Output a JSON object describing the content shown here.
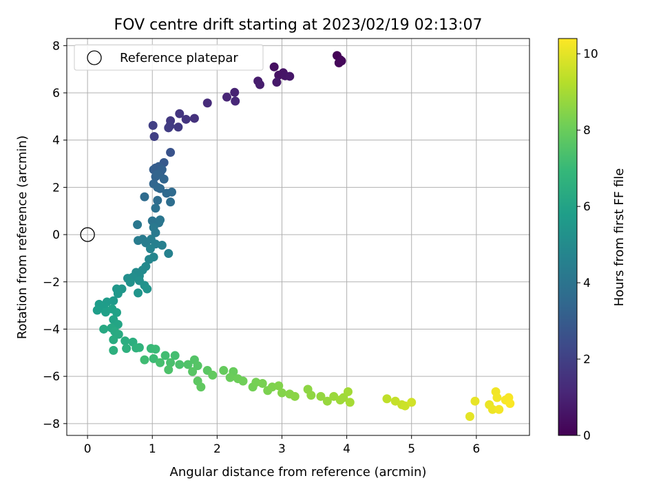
{
  "chart_data": {
    "type": "scatter",
    "title": "FOV centre drift starting at 2023/02/19 02:13:07",
    "xlabel": "Angular distance from reference (arcmin)",
    "ylabel": "Rotation from reference (arcmin)",
    "xlim": [
      -0.32,
      6.82
    ],
    "ylim": [
      -8.5,
      8.3
    ],
    "xticks": [
      0,
      1,
      2,
      3,
      4,
      5,
      6
    ],
    "yticks": [
      -8,
      -6,
      -4,
      -2,
      0,
      2,
      4,
      6,
      8
    ],
    "grid": true,
    "legend": {
      "position": "top-left",
      "entries": [
        "Reference platepar"
      ]
    },
    "reference_point": {
      "x": 0,
      "y": 0,
      "marker": "open-circle"
    },
    "colorbar": {
      "label": "Hours from first FF file",
      "colormap": "viridis",
      "min": 0,
      "max": 10.4,
      "ticks": [
        0,
        2,
        4,
        6,
        8,
        10
      ]
    },
    "points": [
      {
        "x": 3.85,
        "y": 7.58,
        "c": 0.05
      },
      {
        "x": 3.9,
        "y": 7.4,
        "c": 0.1
      },
      {
        "x": 3.88,
        "y": 7.27,
        "c": 0.15
      },
      {
        "x": 3.92,
        "y": 7.35,
        "c": 0.2
      },
      {
        "x": 2.88,
        "y": 7.1,
        "c": 0.4
      },
      {
        "x": 2.95,
        "y": 6.75,
        "c": 0.5
      },
      {
        "x": 3.02,
        "y": 6.85,
        "c": 0.55
      },
      {
        "x": 3.05,
        "y": 6.72,
        "c": 0.6
      },
      {
        "x": 3.12,
        "y": 6.7,
        "c": 0.65
      },
      {
        "x": 2.92,
        "y": 6.45,
        "c": 0.7
      },
      {
        "x": 2.63,
        "y": 6.5,
        "c": 0.8
      },
      {
        "x": 2.66,
        "y": 6.35,
        "c": 0.85
      },
      {
        "x": 2.27,
        "y": 6.02,
        "c": 1.0
      },
      {
        "x": 2.15,
        "y": 5.82,
        "c": 1.1
      },
      {
        "x": 2.28,
        "y": 5.65,
        "c": 1.15
      },
      {
        "x": 1.85,
        "y": 5.57,
        "c": 1.3
      },
      {
        "x": 1.65,
        "y": 4.92,
        "c": 1.5
      },
      {
        "x": 1.52,
        "y": 4.88,
        "c": 1.6
      },
      {
        "x": 1.42,
        "y": 5.12,
        "c": 1.65
      },
      {
        "x": 1.28,
        "y": 4.82,
        "c": 1.75
      },
      {
        "x": 1.4,
        "y": 4.55,
        "c": 1.8
      },
      {
        "x": 1.27,
        "y": 4.6,
        "c": 1.85
      },
      {
        "x": 1.25,
        "y": 4.52,
        "c": 1.9
      },
      {
        "x": 1.01,
        "y": 4.62,
        "c": 1.95
      },
      {
        "x": 1.03,
        "y": 4.15,
        "c": 2.0
      },
      {
        "x": 1.28,
        "y": 3.48,
        "c": 2.7
      },
      {
        "x": 1.18,
        "y": 3.05,
        "c": 2.9
      },
      {
        "x": 1.05,
        "y": 2.82,
        "c": 3.0
      },
      {
        "x": 1.1,
        "y": 2.88,
        "c": 3.05
      },
      {
        "x": 1.02,
        "y": 2.75,
        "c": 3.1
      },
      {
        "x": 1.12,
        "y": 2.6,
        "c": 3.15
      },
      {
        "x": 1.15,
        "y": 2.75,
        "c": 3.2
      },
      {
        "x": 1.05,
        "y": 2.45,
        "c": 3.25
      },
      {
        "x": 1.08,
        "y": 2.55,
        "c": 3.3
      },
      {
        "x": 1.18,
        "y": 2.35,
        "c": 3.35
      },
      {
        "x": 1.02,
        "y": 2.15,
        "c": 3.4
      },
      {
        "x": 1.08,
        "y": 2.0,
        "c": 3.45
      },
      {
        "x": 1.12,
        "y": 1.95,
        "c": 3.5
      },
      {
        "x": 1.22,
        "y": 1.75,
        "c": 3.55
      },
      {
        "x": 1.3,
        "y": 1.8,
        "c": 3.6
      },
      {
        "x": 0.88,
        "y": 1.6,
        "c": 3.65
      },
      {
        "x": 1.08,
        "y": 1.45,
        "c": 3.7
      },
      {
        "x": 1.28,
        "y": 1.38,
        "c": 3.75
      },
      {
        "x": 1.05,
        "y": 1.12,
        "c": 3.85
      },
      {
        "x": 1.0,
        "y": 0.58,
        "c": 4.0
      },
      {
        "x": 1.1,
        "y": 0.5,
        "c": 4.05
      },
      {
        "x": 1.12,
        "y": 0.62,
        "c": 4.1
      },
      {
        "x": 0.77,
        "y": 0.42,
        "c": 4.15
      },
      {
        "x": 1.02,
        "y": 0.3,
        "c": 4.2
      },
      {
        "x": 1.05,
        "y": 0.08,
        "c": 4.25
      },
      {
        "x": 0.85,
        "y": -0.2,
        "c": 4.3
      },
      {
        "x": 0.78,
        "y": -0.25,
        "c": 4.35
      },
      {
        "x": 0.9,
        "y": -0.35,
        "c": 4.4
      },
      {
        "x": 0.98,
        "y": -0.2,
        "c": 4.45
      },
      {
        "x": 1.05,
        "y": -0.4,
        "c": 4.5
      },
      {
        "x": 1.15,
        "y": -0.45,
        "c": 4.55
      },
      {
        "x": 1.25,
        "y": -0.8,
        "c": 4.6
      },
      {
        "x": 0.97,
        "y": -0.6,
        "c": 4.65
      },
      {
        "x": 1.02,
        "y": -0.95,
        "c": 4.75
      },
      {
        "x": 0.95,
        "y": -1.05,
        "c": 4.8
      },
      {
        "x": 0.9,
        "y": -1.35,
        "c": 4.9
      },
      {
        "x": 0.85,
        "y": -1.5,
        "c": 4.95
      },
      {
        "x": 0.75,
        "y": -1.6,
        "c": 5.0
      },
      {
        "x": 0.8,
        "y": -1.75,
        "c": 5.05
      },
      {
        "x": 0.7,
        "y": -1.8,
        "c": 5.1
      },
      {
        "x": 0.62,
        "y": -1.85,
        "c": 5.15
      },
      {
        "x": 0.8,
        "y": -1.95,
        "c": 5.2
      },
      {
        "x": 0.66,
        "y": -2.02,
        "c": 5.25
      },
      {
        "x": 0.88,
        "y": -2.15,
        "c": 5.3
      },
      {
        "x": 0.92,
        "y": -2.3,
        "c": 5.35
      },
      {
        "x": 0.78,
        "y": -2.47,
        "c": 5.4
      },
      {
        "x": 0.53,
        "y": -2.3,
        "c": 5.45
      },
      {
        "x": 0.45,
        "y": -2.3,
        "c": 5.5
      },
      {
        "x": 0.47,
        "y": -2.5,
        "c": 5.55
      },
      {
        "x": 0.4,
        "y": -2.8,
        "c": 5.6
      },
      {
        "x": 0.3,
        "y": -2.85,
        "c": 5.65
      },
      {
        "x": 0.18,
        "y": -2.95,
        "c": 5.7
      },
      {
        "x": 0.25,
        "y": -3.05,
        "c": 5.75
      },
      {
        "x": 0.15,
        "y": -3.2,
        "c": 5.8
      },
      {
        "x": 0.28,
        "y": -3.28,
        "c": 5.85
      },
      {
        "x": 0.38,
        "y": -3.15,
        "c": 5.9
      },
      {
        "x": 0.45,
        "y": -3.3,
        "c": 5.95
      },
      {
        "x": 0.4,
        "y": -3.6,
        "c": 6.0
      },
      {
        "x": 0.47,
        "y": -3.8,
        "c": 6.1
      },
      {
        "x": 0.37,
        "y": -3.95,
        "c": 6.2
      },
      {
        "x": 0.25,
        "y": -4.0,
        "c": 6.25
      },
      {
        "x": 0.42,
        "y": -4.1,
        "c": 6.3
      },
      {
        "x": 0.48,
        "y": -4.22,
        "c": 6.35
      },
      {
        "x": 0.4,
        "y": -4.45,
        "c": 6.4
      },
      {
        "x": 0.58,
        "y": -4.5,
        "c": 6.45
      },
      {
        "x": 0.7,
        "y": -4.55,
        "c": 6.5
      },
      {
        "x": 0.4,
        "y": -4.9,
        "c": 6.55
      },
      {
        "x": 0.6,
        "y": -4.82,
        "c": 6.6
      },
      {
        "x": 0.75,
        "y": -4.8,
        "c": 6.65
      },
      {
        "x": 0.8,
        "y": -4.78,
        "c": 6.7
      },
      {
        "x": 0.98,
        "y": -4.82,
        "c": 7.0
      },
      {
        "x": 1.05,
        "y": -4.85,
        "c": 7.05
      },
      {
        "x": 1.02,
        "y": -5.25,
        "c": 7.1
      },
      {
        "x": 0.88,
        "y": -5.3,
        "c": 7.15
      },
      {
        "x": 1.2,
        "y": -5.12,
        "c": 7.2
      },
      {
        "x": 1.35,
        "y": -5.12,
        "c": 7.25
      },
      {
        "x": 1.12,
        "y": -5.42,
        "c": 7.3
      },
      {
        "x": 1.28,
        "y": -5.42,
        "c": 7.35
      },
      {
        "x": 1.42,
        "y": -5.5,
        "c": 7.4
      },
      {
        "x": 1.25,
        "y": -5.72,
        "c": 7.45
      },
      {
        "x": 1.55,
        "y": -5.5,
        "c": 7.5
      },
      {
        "x": 1.65,
        "y": -5.3,
        "c": 7.55
      },
      {
        "x": 1.7,
        "y": -5.55,
        "c": 7.6
      },
      {
        "x": 1.62,
        "y": -5.8,
        "c": 7.65
      },
      {
        "x": 1.85,
        "y": -5.75,
        "c": 7.7
      },
      {
        "x": 1.7,
        "y": -6.2,
        "c": 7.75
      },
      {
        "x": 1.75,
        "y": -6.45,
        "c": 7.8
      },
      {
        "x": 1.93,
        "y": -5.95,
        "c": 7.85
      },
      {
        "x": 2.1,
        "y": -5.75,
        "c": 7.9
      },
      {
        "x": 2.25,
        "y": -5.8,
        "c": 7.95
      },
      {
        "x": 2.2,
        "y": -6.05,
        "c": 8.0
      },
      {
        "x": 2.32,
        "y": -6.1,
        "c": 8.05
      },
      {
        "x": 2.4,
        "y": -6.2,
        "c": 8.1
      },
      {
        "x": 2.55,
        "y": -6.45,
        "c": 8.15
      },
      {
        "x": 2.6,
        "y": -6.25,
        "c": 8.2
      },
      {
        "x": 2.7,
        "y": -6.3,
        "c": 8.25
      },
      {
        "x": 2.78,
        "y": -6.6,
        "c": 8.3
      },
      {
        "x": 2.85,
        "y": -6.45,
        "c": 8.35
      },
      {
        "x": 2.95,
        "y": -6.4,
        "c": 8.4
      },
      {
        "x": 3.0,
        "y": -6.7,
        "c": 8.45
      },
      {
        "x": 3.12,
        "y": -6.75,
        "c": 8.5
      },
      {
        "x": 3.2,
        "y": -6.85,
        "c": 8.55
      },
      {
        "x": 3.4,
        "y": -6.55,
        "c": 8.6
      },
      {
        "x": 3.45,
        "y": -6.8,
        "c": 8.65
      },
      {
        "x": 3.6,
        "y": -6.85,
        "c": 8.7
      },
      {
        "x": 3.7,
        "y": -7.05,
        "c": 8.75
      },
      {
        "x": 3.8,
        "y": -6.85,
        "c": 8.8
      },
      {
        "x": 3.9,
        "y": -7.0,
        "c": 8.85
      },
      {
        "x": 3.95,
        "y": -6.9,
        "c": 8.9
      },
      {
        "x": 4.02,
        "y": -6.65,
        "c": 8.95
      },
      {
        "x": 4.05,
        "y": -7.1,
        "c": 9.0
      },
      {
        "x": 4.62,
        "y": -6.95,
        "c": 9.4
      },
      {
        "x": 4.75,
        "y": -7.05,
        "c": 9.5
      },
      {
        "x": 4.85,
        "y": -7.2,
        "c": 9.55
      },
      {
        "x": 4.9,
        "y": -7.25,
        "c": 9.6
      },
      {
        "x": 5.0,
        "y": -7.1,
        "c": 9.7
      },
      {
        "x": 5.9,
        "y": -7.7,
        "c": 10.0
      },
      {
        "x": 5.98,
        "y": -7.05,
        "c": 10.05
      },
      {
        "x": 6.2,
        "y": -7.2,
        "c": 10.1
      },
      {
        "x": 6.25,
        "y": -7.4,
        "c": 10.15
      },
      {
        "x": 6.3,
        "y": -6.65,
        "c": 10.2
      },
      {
        "x": 6.32,
        "y": -6.9,
        "c": 10.22
      },
      {
        "x": 6.35,
        "y": -7.4,
        "c": 10.25
      },
      {
        "x": 6.45,
        "y": -7.0,
        "c": 10.3
      },
      {
        "x": 6.5,
        "y": -6.9,
        "c": 10.32
      },
      {
        "x": 6.52,
        "y": -7.15,
        "c": 10.35
      }
    ]
  }
}
